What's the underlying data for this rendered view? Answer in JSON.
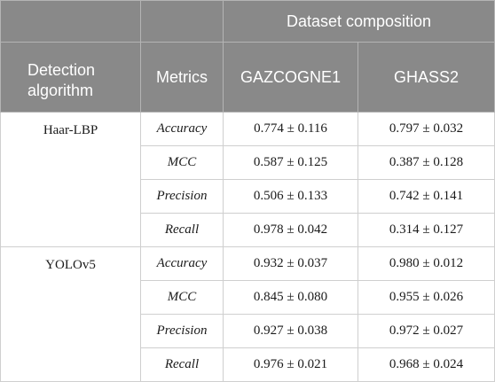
{
  "header": {
    "detection_algorithm": "Detection algorithm",
    "metrics": "Metrics",
    "dataset_composition": "Dataset composition",
    "datasets": [
      "GAZCOGNE1",
      "GHASS2"
    ]
  },
  "groups": [
    {
      "algorithm": "Haar-LBP",
      "rows": [
        {
          "metric": "Accuracy",
          "gaz": "0.774 ± 0.116",
          "ghass": "0.797 ± 0.032"
        },
        {
          "metric": "MCC",
          "gaz": "0.587 ± 0.125",
          "ghass": "0.387 ± 0.128"
        },
        {
          "metric": "Precision",
          "gaz": "0.506 ± 0.133",
          "ghass": "0.742 ± 0.141"
        },
        {
          "metric": "Recall",
          "gaz": "0.978 ± 0.042",
          "ghass": "0.314 ± 0.127"
        }
      ]
    },
    {
      "algorithm": "YOLOv5",
      "rows": [
        {
          "metric": "Accuracy",
          "gaz": "0.932 ± 0.037",
          "ghass": "0.980 ± 0.012"
        },
        {
          "metric": "MCC",
          "gaz": "0.845 ± 0.080",
          "ghass": "0.955 ± 0.026"
        },
        {
          "metric": "Precision",
          "gaz": "0.927 ± 0.038",
          "ghass": "0.972 ± 0.027"
        },
        {
          "metric": "Recall",
          "gaz": "0.976 ± 0.021",
          "ghass": "0.968 ± 0.024"
        }
      ]
    }
  ]
}
